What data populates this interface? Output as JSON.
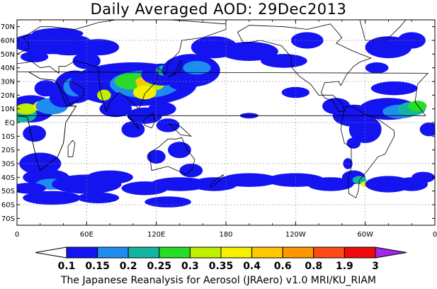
{
  "title": "Daily Averaged AOD: 29Dec2013",
  "footer": "The Japanese Reanalysis for Aerosol (JRAero) v1.0 MRI/KU_RIAM",
  "map": {
    "projection": "equirectangular",
    "lon_range": [
      0,
      360
    ],
    "lat_range": [
      -75,
      75
    ],
    "gridlines": true,
    "lat_labels": [
      "70N",
      "60N",
      "50N",
      "40N",
      "30N",
      "20N",
      "10N",
      "EQ",
      "10S",
      "20S",
      "30S",
      "40S",
      "50S",
      "60S",
      "70S"
    ],
    "lon_labels": [
      "0",
      "60E",
      "120E",
      "180",
      "120W",
      "60W",
      "0"
    ]
  },
  "colorbar": {
    "labels": [
      "0.1",
      "0.15",
      "0.2",
      "0.25",
      "0.3",
      "0.35",
      "0.4",
      "0.6",
      "0.8",
      "1.9",
      "3"
    ],
    "colors": [
      "#ffffff",
      "#1414f0",
      "#1e8cf0",
      "#14b4a0",
      "#28dc28",
      "#bef000",
      "#f5f000",
      "#ffc800",
      "#ff9600",
      "#ff4b14",
      "#f00a0a",
      "#a028e6"
    ]
  }
}
